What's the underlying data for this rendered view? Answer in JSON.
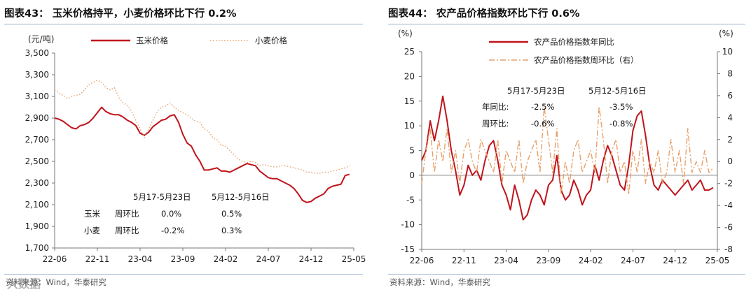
{
  "left": {
    "title": "图表43：  玉米价格持平，小麦价格环比下行 0.2%",
    "source": "资料来源：Wind，华泰研究",
    "chart_data": {
      "type": "line",
      "ylabel": "(元/吨)",
      "ylim": [
        1700,
        3500
      ],
      "yticks": [
        1700,
        1900,
        2100,
        2300,
        2500,
        2700,
        2900,
        3100,
        3300,
        3500
      ],
      "ytick_labels": [
        "1,700",
        "1,900",
        "2,100",
        "2,300",
        "2,500",
        "2,700",
        "2,900",
        "3,100",
        "3,300",
        "3,500"
      ],
      "xlim": [
        0,
        35
      ],
      "xticks": [
        0,
        5,
        10,
        15,
        20,
        25,
        30,
        35
      ],
      "xtick_labels": [
        "22-06",
        "22-11",
        "23-04",
        "23-09",
        "24-02",
        "24-07",
        "24-12",
        "25-05"
      ],
      "grid": false,
      "legend": "top",
      "series": [
        {
          "name": "玉米价格",
          "style": "solid",
          "color": "#c0141c",
          "x": [
            0,
            0.5,
            1,
            1.5,
            2,
            2.5,
            3,
            3.5,
            4,
            4.5,
            5,
            5.5,
            6,
            6.5,
            7,
            7.5,
            8,
            8.5,
            9,
            9.5,
            10,
            10.5,
            11,
            11.5,
            12,
            12.5,
            13,
            13.5,
            14,
            14.5,
            15,
            15.5,
            16,
            16.5,
            17,
            17.5,
            18,
            18.5,
            19,
            19.5,
            20,
            20.5,
            21,
            21.5,
            22,
            22.5,
            23,
            23.5,
            24,
            24.5,
            25,
            25.5,
            26,
            26.5,
            27,
            27.5,
            28,
            28.5,
            29,
            29.5,
            30,
            30.5,
            31,
            31.5,
            32,
            32.5,
            33,
            33.5,
            34,
            34.5
          ],
          "values": [
            2900,
            2890,
            2870,
            2840,
            2810,
            2800,
            2830,
            2840,
            2860,
            2900,
            2950,
            3000,
            2960,
            2940,
            2930,
            2930,
            2910,
            2880,
            2860,
            2830,
            2760,
            2740,
            2770,
            2820,
            2850,
            2880,
            2890,
            2920,
            2930,
            2860,
            2750,
            2670,
            2640,
            2560,
            2500,
            2420,
            2420,
            2430,
            2440,
            2410,
            2410,
            2400,
            2420,
            2440,
            2460,
            2480,
            2470,
            2460,
            2410,
            2380,
            2350,
            2340,
            2340,
            2320,
            2300,
            2280,
            2250,
            2200,
            2140,
            2120,
            2130,
            2160,
            2180,
            2200,
            2250,
            2270,
            2280,
            2290,
            2370,
            2380
          ]
        },
        {
          "name": "小麦价格",
          "style": "dotted",
          "color": "#e8a06a",
          "x": [
            0,
            0.5,
            1,
            1.5,
            2,
            2.5,
            3,
            3.5,
            4,
            4.5,
            5,
            5.5,
            6,
            6.5,
            7,
            7.5,
            8,
            8.5,
            9,
            9.5,
            10,
            10.5,
            11,
            11.5,
            12,
            12.5,
            13,
            13.5,
            14,
            14.5,
            15,
            15.5,
            16,
            16.5,
            17,
            17.5,
            18,
            18.5,
            19,
            19.5,
            20,
            20.5,
            21,
            21.5,
            22,
            22.5,
            23,
            23.5,
            24,
            24.5,
            25,
            25.5,
            26,
            26.5,
            27,
            27.5,
            28,
            28.5,
            29,
            29.5,
            30,
            30.5,
            31,
            31.5,
            32,
            32.5,
            33,
            33.5,
            34,
            34.5
          ],
          "values": [
            3160,
            3130,
            3110,
            3080,
            3100,
            3110,
            3120,
            3160,
            3210,
            3230,
            3250,
            3230,
            3180,
            3160,
            3180,
            3090,
            3040,
            3020,
            2960,
            2880,
            2800,
            2720,
            2800,
            2880,
            2960,
            3000,
            3010,
            3040,
            3000,
            2970,
            2950,
            2930,
            2900,
            2870,
            2860,
            2800,
            2780,
            2720,
            2700,
            2650,
            2640,
            2600,
            2560,
            2520,
            2500,
            2490,
            2500,
            2490,
            2460,
            2470,
            2460,
            2450,
            2450,
            2460,
            2460,
            2450,
            2440,
            2430,
            2420,
            2400,
            2400,
            2390,
            2390,
            2400,
            2400,
            2410,
            2420,
            2430,
            2440,
            2460
          ]
        }
      ],
      "annotations": {
        "header_col1": "5月17-5月23日",
        "header_col2": "5月12-5月16日",
        "rows": [
          {
            "item": "玉米",
            "metric": "周环比",
            "col1": "0.0%",
            "col2": "0.5%"
          },
          {
            "item": "小麦",
            "metric": "周环比",
            "col1": "-0.2%",
            "col2": "0.3%"
          }
        ]
      }
    }
  },
  "right": {
    "title": "图表44：  农产品价格指数环比下行 0.6%",
    "source": "资料来源：Wind，华泰研究",
    "chart_data": {
      "type": "line",
      "ylabel_left": "(%)",
      "ylabel_right": "(%)",
      "ylim_left": [
        -15,
        25
      ],
      "yticks_left": [
        -15,
        -10,
        -5,
        0,
        5,
        10,
        15,
        20,
        25
      ],
      "ylim_right": [
        -8,
        10
      ],
      "yticks_right": [
        -8,
        -6,
        -4,
        -2,
        0,
        2,
        4,
        6,
        8,
        10
      ],
      "xlim": [
        0,
        35
      ],
      "xticks": [
        0,
        5,
        10,
        15,
        20,
        25,
        30,
        35
      ],
      "xtick_labels": [
        "22-06",
        "22-11",
        "23-04",
        "23-09",
        "24-02",
        "24-07",
        "24-12",
        "25-05"
      ],
      "grid": false,
      "legend": "top",
      "series": [
        {
          "name": "农产品价格指数年同比",
          "axis": "left",
          "style": "solid",
          "color": "#c0141c",
          "x": [
            0,
            0.5,
            1,
            1.5,
            2,
            2.5,
            3,
            3.5,
            4,
            4.5,
            5,
            5.5,
            6,
            6.5,
            7,
            7.5,
            8,
            8.5,
            9,
            9.5,
            10,
            10.5,
            11,
            11.5,
            12,
            12.5,
            13,
            13.5,
            14,
            14.5,
            15,
            15.5,
            16,
            16.5,
            17,
            17.5,
            18,
            18.5,
            19,
            19.5,
            20,
            20.5,
            21,
            21.5,
            22,
            22.5,
            23,
            23.5,
            24,
            24.5,
            25,
            25.5,
            26,
            26.5,
            27,
            27.5,
            28,
            28.5,
            29,
            29.5,
            30,
            30.5,
            31,
            31.5,
            32,
            32.5,
            33,
            33.5,
            34,
            34.5
          ],
          "values": [
            3,
            5,
            11,
            7,
            11,
            16,
            11,
            5,
            1,
            -4,
            -2,
            2,
            0,
            1,
            -1,
            3,
            6,
            7,
            3,
            -2,
            -4,
            -7,
            -2,
            -5,
            -9,
            -8,
            -5,
            -3,
            -4,
            -6,
            -2,
            -1,
            4,
            -3,
            -5,
            -4,
            -1,
            -3,
            -6,
            -4,
            -3,
            2,
            -1,
            3,
            6,
            4,
            1,
            -2,
            -3,
            2,
            9,
            12,
            13,
            8,
            2,
            -2,
            -3,
            -1,
            -2,
            -3,
            -4,
            -3,
            -2,
            -1,
            -3,
            -2,
            -1,
            -3,
            -3,
            -2.5
          ]
        },
        {
          "name": "农产品价格指数周环比（右）",
          "axis": "right",
          "style": "dashdot",
          "color": "#e8a06a",
          "x": [
            0,
            0.5,
            1,
            1.5,
            2,
            2.5,
            3,
            3.5,
            4,
            4.5,
            5,
            5.5,
            6,
            6.5,
            7,
            7.5,
            8,
            8.5,
            9,
            9.5,
            10,
            10.5,
            11,
            11.5,
            12,
            12.5,
            13,
            13.5,
            14,
            14.5,
            15,
            15.5,
            16,
            16.5,
            17,
            17.5,
            18,
            18.5,
            19,
            19.5,
            20,
            20.5,
            21,
            21.5,
            22,
            22.5,
            23,
            23.5,
            24,
            24.5,
            25,
            25.5,
            26,
            26.5,
            27,
            27.5,
            28,
            28.5,
            29,
            29.5,
            30,
            30.5,
            31,
            31.5,
            32,
            32.5,
            33,
            33.5,
            34,
            34.5
          ],
          "values": [
            -2,
            1,
            3,
            -1,
            2,
            0,
            3,
            -1,
            1,
            -2,
            1,
            2,
            0,
            -1,
            2,
            1,
            0,
            -1,
            2,
            -2,
            1,
            0,
            -1,
            2,
            -2,
            0,
            1,
            2,
            -1,
            5,
            2,
            -1,
            3,
            -3,
            0,
            -2,
            1,
            2,
            -1,
            0,
            1,
            -1,
            5,
            2,
            -2,
            1,
            2,
            -1,
            0,
            -3,
            1,
            -1,
            2,
            -2,
            0,
            -1,
            1,
            -2,
            -1,
            2,
            -1,
            1,
            -2,
            3,
            -1,
            0,
            -1,
            1,
            -1,
            -0.6
          ]
        }
      ],
      "annotations": {
        "header_col1": "5月17-5月23日",
        "header_col2": "5月12-5月16日",
        "rows": [
          {
            "metric": "年同比:",
            "col1": "-2.5%",
            "col2": "-3.5%"
          },
          {
            "metric": "周环比:",
            "col1": "-0.6%",
            "col2": "-0.8%"
          }
        ]
      }
    }
  },
  "watermark": "大数据"
}
